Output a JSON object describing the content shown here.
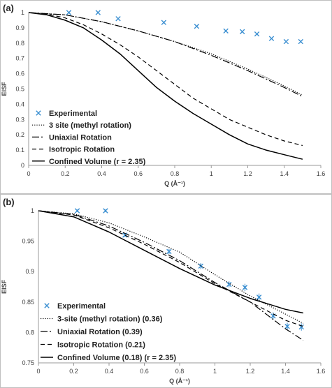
{
  "chart_data": [
    {
      "panel_tag": "(a)",
      "type": "line",
      "xlabel": "Q (Å⁻¹)",
      "ylabel": "EISF",
      "xlim": [
        0,
        1.6
      ],
      "ylim": [
        0,
        1
      ],
      "xticks": [
        0,
        0.2,
        0.4,
        0.6,
        0.8,
        1,
        1.2,
        1.4,
        1.6
      ],
      "xtick_labels": [
        "0",
        "0.2",
        "0.4",
        "0.6",
        "0.8",
        "1",
        "1.2",
        "1.4",
        "1.6"
      ],
      "yticks": [
        0,
        0.1,
        0.2,
        0.3,
        0.4,
        0.5,
        0.6,
        0.7,
        0.8,
        0.9,
        1
      ],
      "ytick_labels": [
        "0",
        "0.1",
        "0.2",
        "0.3",
        "0.4",
        "0.5",
        "0.6",
        "0.7",
        "0.8",
        "0.9",
        "1"
      ],
      "grid": false,
      "legend_position": "bottom-left",
      "colors": {
        "experimental": "#3b8fd1",
        "model": "#000000"
      },
      "series": [
        {
          "name": "Experimental",
          "style": "marker-x",
          "x": [
            0.22,
            0.38,
            0.49,
            0.74,
            0.92,
            1.08,
            1.17,
            1.25,
            1.33,
            1.41,
            1.49
          ],
          "y": [
            1.0,
            1.0,
            0.96,
            0.935,
            0.91,
            0.88,
            0.875,
            0.86,
            0.83,
            0.81,
            0.81
          ]
        },
        {
          "name": "3 site (methyl rotation)",
          "style": "dotted",
          "x": [
            0,
            0.2,
            0.4,
            0.6,
            0.8,
            1.0,
            1.2,
            1.4,
            1.5
          ],
          "y": [
            1.0,
            0.985,
            0.94,
            0.88,
            0.81,
            0.73,
            0.63,
            0.52,
            0.46
          ]
        },
        {
          "name": "Uniaxial Rotation",
          "style": "dash-dot",
          "x": [
            0,
            0.2,
            0.4,
            0.6,
            0.8,
            1.0,
            1.2,
            1.4,
            1.5
          ],
          "y": [
            1.0,
            0.985,
            0.94,
            0.88,
            0.81,
            0.72,
            0.62,
            0.51,
            0.45
          ]
        },
        {
          "name": "Isotropic Rotation",
          "style": "dashed",
          "x": [
            0,
            0.1,
            0.2,
            0.3,
            0.4,
            0.5,
            0.6,
            0.7,
            0.8,
            0.9,
            1.0,
            1.1,
            1.2,
            1.3,
            1.4,
            1.5
          ],
          "y": [
            1.0,
            0.99,
            0.965,
            0.92,
            0.86,
            0.79,
            0.71,
            0.62,
            0.53,
            0.44,
            0.37,
            0.3,
            0.25,
            0.2,
            0.16,
            0.13
          ]
        },
        {
          "name": "Confined Volume (r = 2.35)",
          "style": "solid",
          "x": [
            0,
            0.1,
            0.2,
            0.3,
            0.4,
            0.5,
            0.6,
            0.7,
            0.8,
            0.9,
            1.0,
            1.1,
            1.2,
            1.3,
            1.4,
            1.5
          ],
          "y": [
            1.0,
            0.985,
            0.95,
            0.9,
            0.82,
            0.73,
            0.62,
            0.51,
            0.42,
            0.34,
            0.27,
            0.2,
            0.14,
            0.1,
            0.07,
            0.04
          ]
        }
      ]
    },
    {
      "panel_tag": "(b)",
      "type": "line",
      "xlabel": "Q (Å⁻¹)",
      "ylabel": "EISF",
      "xlim": [
        0,
        1.6
      ],
      "ylim": [
        0.75,
        1
      ],
      "xticks": [
        0,
        0.2,
        0.4,
        0.6,
        0.8,
        1,
        1.2,
        1.4,
        1.6
      ],
      "xtick_labels": [
        "0",
        "0.2",
        "0.4",
        "0.6",
        "0.8",
        "1",
        "1.2",
        "1.4",
        "1.6"
      ],
      "yticks": [
        0.75,
        0.8,
        0.85,
        0.9,
        0.95,
        1
      ],
      "ytick_labels": [
        "0.75",
        "0.8",
        "0.85",
        "0.9",
        "0.95",
        "1"
      ],
      "grid": false,
      "legend_position": "bottom-left",
      "colors": {
        "experimental": "#3b8fd1",
        "model": "#000000"
      },
      "series": [
        {
          "name": "Experimental",
          "style": "marker-x-errorbar",
          "x": [
            0.22,
            0.38,
            0.49,
            0.74,
            0.92,
            1.08,
            1.17,
            1.25,
            1.33,
            1.41,
            1.49
          ],
          "y": [
            1.0,
            1.0,
            0.96,
            0.933,
            0.909,
            0.879,
            0.874,
            0.858,
            0.827,
            0.81,
            0.809
          ],
          "yerr": [
            0.002,
            0.002,
            0.003,
            0.004,
            0.005,
            0.005,
            0.006,
            0.006,
            0.006,
            0.006,
            0.006
          ]
        },
        {
          "name": "3-site (methyl rotation) (0.36)",
          "style": "dotted",
          "x": [
            0,
            0.2,
            0.4,
            0.6,
            0.8,
            1.0,
            1.2,
            1.4,
            1.5
          ],
          "y": [
            1.0,
            0.995,
            0.98,
            0.957,
            0.932,
            0.895,
            0.86,
            0.83,
            0.815
          ]
        },
        {
          "name": "Uniaxial Rotation (0.39)",
          "style": "dash-dot",
          "x": [
            0,
            0.2,
            0.4,
            0.6,
            0.8,
            1.0,
            1.2,
            1.4,
            1.5
          ],
          "y": [
            1.0,
            0.994,
            0.975,
            0.948,
            0.918,
            0.882,
            0.85,
            0.806,
            0.787
          ]
        },
        {
          "name": "Isotropic Rotation (0.21)",
          "style": "dashed",
          "x": [
            0,
            0.2,
            0.4,
            0.6,
            0.8,
            1.0,
            1.2,
            1.4,
            1.5
          ],
          "y": [
            1.0,
            0.993,
            0.972,
            0.945,
            0.915,
            0.88,
            0.85,
            0.82,
            0.81
          ]
        },
        {
          "name": "Confined Volume (0.18) (r = 2.35)",
          "style": "solid",
          "x": [
            0,
            0.2,
            0.4,
            0.6,
            0.8,
            1.0,
            1.2,
            1.4,
            1.5
          ],
          "y": [
            1.0,
            0.99,
            0.965,
            0.935,
            0.905,
            0.878,
            0.856,
            0.838,
            0.832
          ]
        }
      ]
    }
  ]
}
